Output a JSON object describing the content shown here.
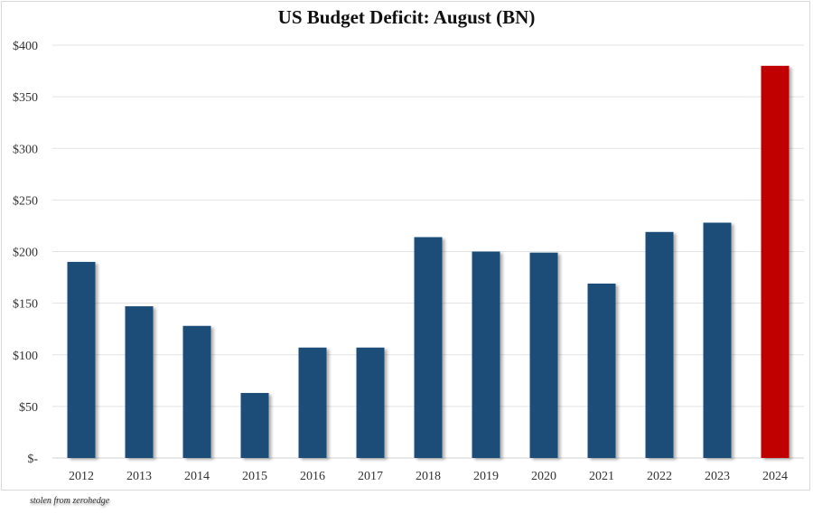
{
  "chart_data": {
    "type": "bar",
    "title": "US Budget Deficit: August  (BN)",
    "xlabel": "",
    "ylabel": "",
    "categories": [
      "2012",
      "2013",
      "2014",
      "2015",
      "2016",
      "2017",
      "2018",
      "2019",
      "2020",
      "2021",
      "2022",
      "2023",
      "2024"
    ],
    "values": [
      190,
      147,
      128,
      63,
      107,
      107,
      214,
      200,
      199,
      169,
      219,
      228,
      380
    ],
    "ylim": [
      0,
      400
    ],
    "yticks": [
      0,
      50,
      100,
      150,
      200,
      250,
      300,
      350,
      400
    ],
    "ytick_labels": [
      "$-",
      "$50",
      "$100",
      "$150",
      "$200",
      "$250",
      "$300",
      "$350",
      "$400"
    ],
    "grid": true,
    "legend": "none",
    "colors": {
      "default": "#1f4e79",
      "highlight": "#c00000",
      "highlight_category": "2024"
    }
  },
  "credit": "stolen from zerohedge"
}
